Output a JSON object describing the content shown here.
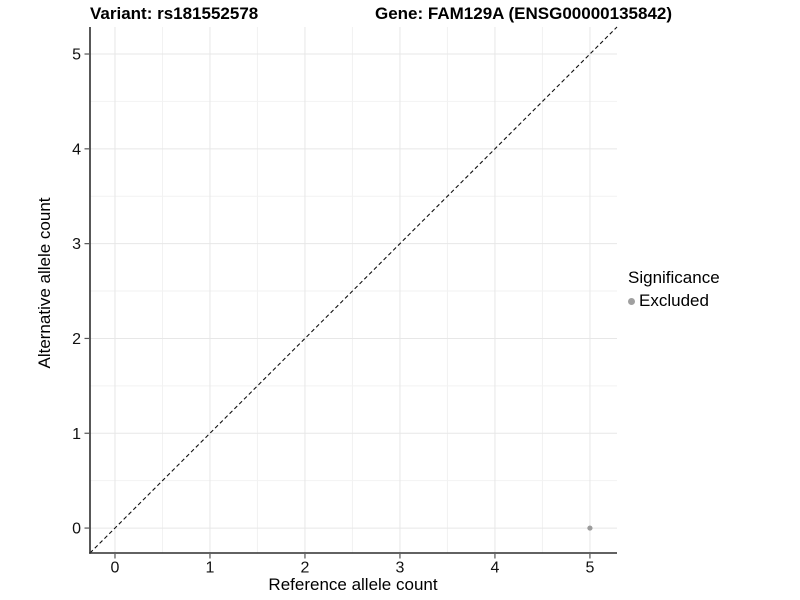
{
  "titles": {
    "variant": "Variant: rs181552578",
    "gene": "Gene: FAM129A (ENSG00000135842)"
  },
  "chart_data": {
    "type": "scatter",
    "xlabel": "Reference allele count",
    "ylabel": "Alternative allele count",
    "xlim": [
      -0.263,
      5.285
    ],
    "ylim": [
      -0.263,
      5.285
    ],
    "x_ticks": [
      0,
      1,
      2,
      3,
      4,
      5
    ],
    "y_ticks": [
      0,
      1,
      2,
      3,
      4,
      5
    ],
    "grid": {
      "major_step": 1,
      "minor_step": 0.5,
      "major_color": "#e7e7e7",
      "minor_color": "#f2f2f2"
    },
    "identity_line": {
      "style": "dashed",
      "from": [
        -0.263,
        -0.263
      ],
      "to": [
        5.285,
        5.285
      ],
      "color": "#111111"
    },
    "points": [
      {
        "x": 5,
        "y": 0,
        "significance": "Excluded",
        "color": "#9c9c9c"
      }
    ],
    "legend": {
      "title": "Significance",
      "position": "right",
      "items": [
        {
          "label": "Excluded",
          "color": "#a0a0a0"
        }
      ]
    },
    "style": {
      "axis_line_color": "#2e2e2e",
      "tick_color": "#555555",
      "tick_label_color": "#111111",
      "background": "#ffffff"
    }
  }
}
